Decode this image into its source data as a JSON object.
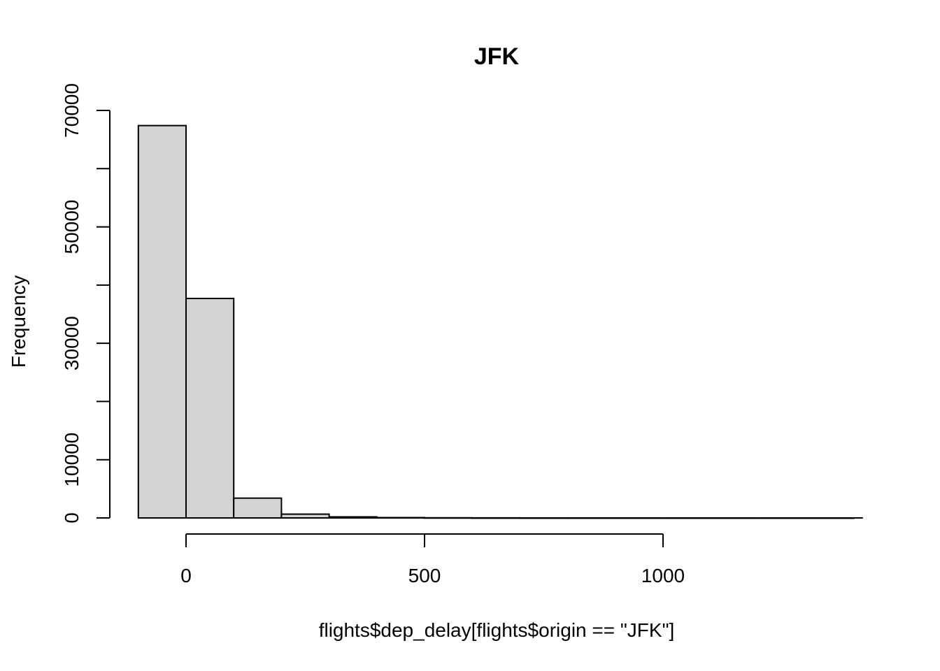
{
  "chart_data": {
    "type": "bar",
    "title": "JFK",
    "xlabel": "flights$dep_delay[flights$origin == \"JFK\"]",
    "ylabel": "Frequency",
    "bins": [
      {
        "start": -100,
        "end": 0,
        "count": 67400
      },
      {
        "start": 0,
        "end": 100,
        "count": 37700
      },
      {
        "start": 100,
        "end": 200,
        "count": 3400
      },
      {
        "start": 200,
        "end": 300,
        "count": 650
      },
      {
        "start": 300,
        "end": 400,
        "count": 180
      },
      {
        "start": 400,
        "end": 500,
        "count": 60
      },
      {
        "start": 500,
        "end": 600,
        "count": 25
      },
      {
        "start": 600,
        "end": 700,
        "count": 12
      },
      {
        "start": 700,
        "end": 800,
        "count": 6
      },
      {
        "start": 800,
        "end": 900,
        "count": 4
      },
      {
        "start": 900,
        "end": 1000,
        "count": 3
      },
      {
        "start": 1000,
        "end": 1100,
        "count": 2
      },
      {
        "start": 1100,
        "end": 1200,
        "count": 1
      },
      {
        "start": 1200,
        "end": 1300,
        "count": 1
      },
      {
        "start": 1300,
        "end": 1400,
        "count": 1
      }
    ],
    "xlim": [
      -100,
      1400
    ],
    "ylim": [
      0,
      70000
    ],
    "x_ticks": [
      0,
      500,
      1000
    ],
    "y_ticks": [
      0,
      10000,
      20000,
      30000,
      40000,
      50000,
      60000,
      70000
    ],
    "y_tick_labels": [
      "0",
      "10000",
      "",
      "30000",
      "",
      "50000",
      "",
      "70000"
    ],
    "bar_fill": "#d3d3d3",
    "bar_stroke": "#000000",
    "grid": false,
    "legend": "none"
  }
}
